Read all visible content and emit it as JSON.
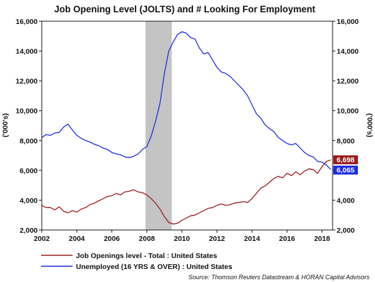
{
  "chart_data": {
    "type": "line",
    "title": "Job Opening Level (JOLTS) and # Looking For Employment",
    "ylabel_left": "('000's)",
    "ylabel_right": "('000's)",
    "ylim": [
      2000,
      16000
    ],
    "xlim": [
      2002.0,
      2018.6
    ],
    "y_ticks": [
      "2,000",
      "4,000",
      "6,000",
      "8,000",
      "10,000",
      "12,000",
      "14,000",
      "16,000"
    ],
    "y_tick_values": [
      2000,
      4000,
      6000,
      8000,
      10000,
      12000,
      14000,
      16000
    ],
    "x_ticks": [
      "2002",
      "2004",
      "2006",
      "2008",
      "2010",
      "2012",
      "2014",
      "2016",
      "2018"
    ],
    "x_tick_values": [
      2002,
      2004,
      2006,
      2008,
      2010,
      2012,
      2014,
      2016,
      2018
    ],
    "recession": [
      2007.92,
      2009.42
    ],
    "grid": false,
    "legend_position": "bottom-left",
    "series": [
      {
        "name": "Job Openings level - Total : United States",
        "color": "#9b1b1b",
        "end_label": "6,698",
        "x": [
          2002.0,
          2002.25,
          2002.5,
          2002.75,
          2003.0,
          2003.25,
          2003.5,
          2003.75,
          2004.0,
          2004.25,
          2004.5,
          2004.75,
          2005.0,
          2005.25,
          2005.5,
          2005.75,
          2006.0,
          2006.25,
          2006.5,
          2006.75,
          2007.0,
          2007.25,
          2007.5,
          2007.75,
          2008.0,
          2008.25,
          2008.5,
          2008.75,
          2009.0,
          2009.25,
          2009.5,
          2009.75,
          2010.0,
          2010.25,
          2010.5,
          2010.75,
          2011.0,
          2011.25,
          2011.5,
          2011.75,
          2012.0,
          2012.25,
          2012.5,
          2012.75,
          2013.0,
          2013.25,
          2013.5,
          2013.75,
          2014.0,
          2014.25,
          2014.5,
          2014.75,
          2015.0,
          2015.25,
          2015.5,
          2015.75,
          2016.0,
          2016.25,
          2016.5,
          2016.75,
          2017.0,
          2017.25,
          2017.5,
          2017.75,
          2018.0,
          2018.25,
          2018.5
        ],
        "values": [
          3650,
          3500,
          3500,
          3350,
          3550,
          3250,
          3150,
          3300,
          3200,
          3400,
          3500,
          3700,
          3800,
          3950,
          4100,
          4250,
          4300,
          4450,
          4350,
          4550,
          4600,
          4700,
          4550,
          4500,
          4350,
          4100,
          3800,
          3400,
          2900,
          2500,
          2400,
          2450,
          2650,
          2800,
          2950,
          3000,
          3150,
          3300,
          3450,
          3500,
          3650,
          3750,
          3650,
          3700,
          3800,
          3850,
          3900,
          3850,
          4100,
          4450,
          4800,
          4950,
          5200,
          5450,
          5600,
          5500,
          5800,
          5650,
          5900,
          5700,
          5950,
          6100,
          6050,
          5800,
          6250,
          6600,
          6698
        ]
      },
      {
        "name": "Unemployed (16 YRS & OVER) : United States",
        "color": "#1f2de0",
        "end_label": "6,065",
        "x": [
          2002.0,
          2002.25,
          2002.5,
          2002.75,
          2003.0,
          2003.25,
          2003.5,
          2003.75,
          2004.0,
          2004.25,
          2004.5,
          2004.75,
          2005.0,
          2005.25,
          2005.5,
          2005.75,
          2006.0,
          2006.25,
          2006.5,
          2006.75,
          2007.0,
          2007.25,
          2007.5,
          2007.75,
          2008.0,
          2008.25,
          2008.5,
          2008.75,
          2009.0,
          2009.25,
          2009.5,
          2009.75,
          2010.0,
          2010.25,
          2010.5,
          2010.75,
          2011.0,
          2011.25,
          2011.5,
          2011.75,
          2012.0,
          2012.25,
          2012.5,
          2012.75,
          2013.0,
          2013.25,
          2013.5,
          2013.75,
          2014.0,
          2014.25,
          2014.5,
          2014.75,
          2015.0,
          2015.25,
          2015.5,
          2015.75,
          2016.0,
          2016.25,
          2016.5,
          2016.75,
          2017.0,
          2017.25,
          2017.5,
          2017.75,
          2018.0,
          2018.25,
          2018.5
        ],
        "values": [
          8200,
          8400,
          8350,
          8500,
          8550,
          8900,
          9100,
          8700,
          8350,
          8150,
          8000,
          7900,
          7750,
          7650,
          7500,
          7400,
          7200,
          7100,
          7050,
          6900,
          6850,
          6950,
          7100,
          7400,
          7600,
          8300,
          9300,
          10500,
          12500,
          14000,
          14600,
          15100,
          15300,
          15200,
          14900,
          14800,
          14200,
          13800,
          13900,
          13400,
          12900,
          12600,
          12500,
          12300,
          12000,
          11700,
          11400,
          11000,
          10400,
          9800,
          9500,
          9050,
          8800,
          8600,
          8200,
          8000,
          7800,
          7700,
          7800,
          7500,
          7200,
          7000,
          6900,
          6600,
          6550,
          6350,
          6065
        ]
      }
    ],
    "source": "Source: Thomson Reuters Datastream & HORAN Capital Advisors"
  }
}
